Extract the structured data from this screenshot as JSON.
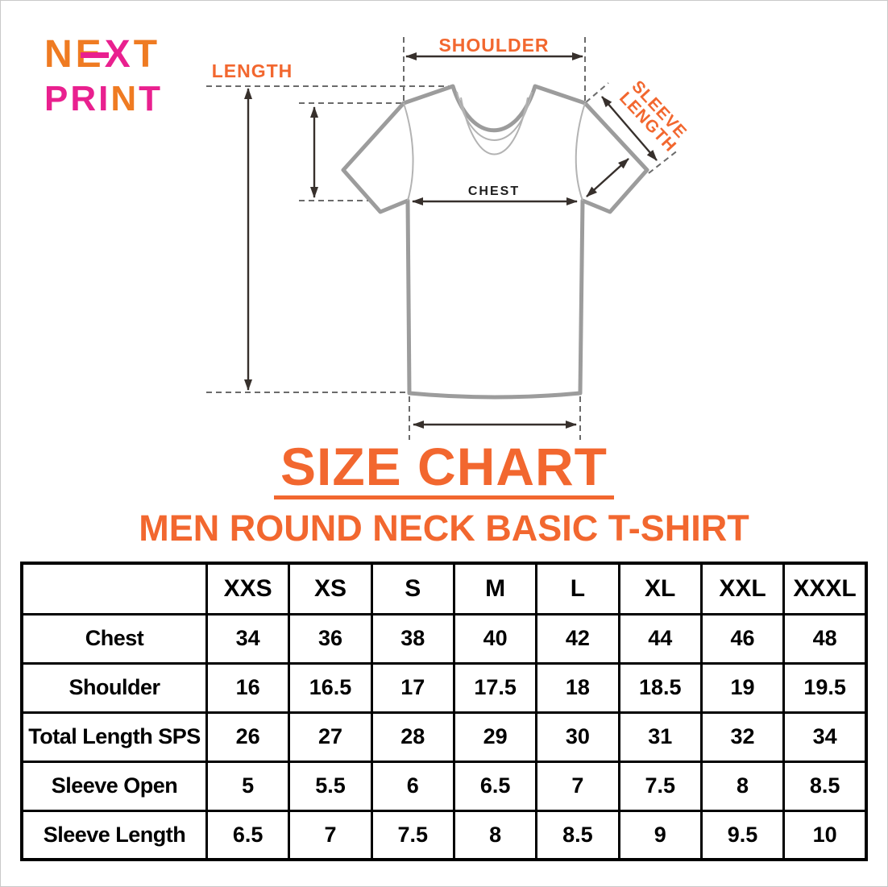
{
  "accent_color": "#F2672F",
  "logo": {
    "line1": [
      {
        "ch": "N",
        "color": "#EF7B22"
      },
      {
        "ch": "E",
        "color": "#EF7B22",
        "arrow": true
      },
      {
        "ch": "X",
        "color": "#E9208F"
      },
      {
        "ch": "T",
        "color": "#EF7B22"
      }
    ],
    "line2": [
      {
        "ch": "P",
        "color": "#E9208F"
      },
      {
        "ch": "R",
        "color": "#E9208F"
      },
      {
        "ch": "I",
        "color": "#E9208F"
      },
      {
        "ch": "N",
        "color": "#EF7B22"
      },
      {
        "ch": "T",
        "color": "#E9208F"
      }
    ]
  },
  "diagram": {
    "shoulder_label": "SHOULDER",
    "length_label": "LENGTH",
    "sleeve_length_line1": "SLEEVE",
    "sleeve_length_line2": "LENGTH",
    "chest_label": "CHEST",
    "shirt_outline_color": "#9c9c9c",
    "arrow_color": "#37302c"
  },
  "title": "SIZE CHART",
  "subtitle": "MEN ROUND NECK BASIC T-SHIRT",
  "table": {
    "corner_label": "",
    "sizes": [
      "XXS",
      "XS",
      "S",
      "M",
      "L",
      "XL",
      "XXL",
      "XXXL"
    ],
    "rows": [
      {
        "label": "Chest",
        "values": [
          "34",
          "36",
          "38",
          "40",
          "42",
          "44",
          "46",
          "48"
        ]
      },
      {
        "label": "Shoulder",
        "values": [
          "16",
          "16.5",
          "17",
          "17.5",
          "18",
          "18.5",
          "19",
          "19.5"
        ]
      },
      {
        "label": "Total Length SPS",
        "values": [
          "26",
          "27",
          "28",
          "29",
          "30",
          "31",
          "32",
          "34"
        ]
      },
      {
        "label": "Sleeve Open",
        "values": [
          "5",
          "5.5",
          "6",
          "6.5",
          "7",
          "7.5",
          "8",
          "8.5"
        ]
      },
      {
        "label": "Sleeve Length",
        "values": [
          "6.5",
          "7",
          "7.5",
          "8",
          "8.5",
          "9",
          "9.5",
          "10"
        ]
      }
    ]
  }
}
